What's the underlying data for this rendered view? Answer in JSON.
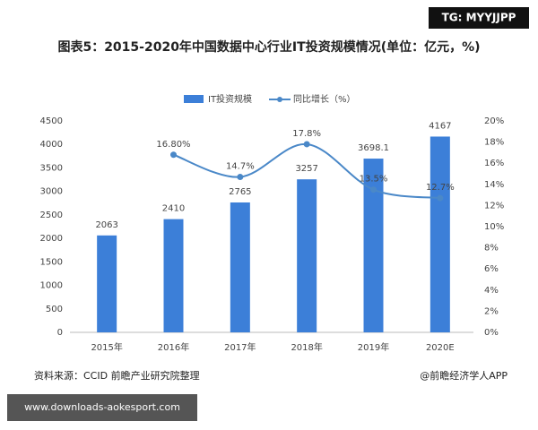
{
  "chart_data": {
    "type": "bar-line",
    "title": "图表5：2015-2020年中国数据中心行业IT投资规模情况(单位：亿元，%)",
    "categories": [
      "2015年",
      "2016年",
      "2017年",
      "2018年",
      "2019年",
      "2020E"
    ],
    "series": [
      {
        "name": "IT投资规模",
        "color": "#3c7fd8",
        "type": "bar",
        "values": [
          2063,
          2410,
          2765,
          3257,
          3698.1,
          4167
        ]
      },
      {
        "name": "同比增长（%）",
        "color": "#4a88c8",
        "type": "line",
        "axis": "y2",
        "values": [
          null,
          16.8,
          14.7,
          17.8,
          13.5,
          12.7
        ],
        "value_labels": [
          null,
          "16.80%",
          "14.7%",
          "17.8%",
          "13.5%",
          "12.7%"
        ]
      }
    ],
    "ylim": [
      0,
      4500
    ],
    "yticks": [
      0,
      500,
      1000,
      1500,
      2000,
      2500,
      3000,
      3500,
      4000,
      4500
    ],
    "y2lim": [
      0,
      20
    ],
    "y2ticks": [
      {
        "value": 0,
        "label": "0%"
      },
      {
        "value": 2,
        "label": "2%"
      },
      {
        "value": 4,
        "label": "4%"
      },
      {
        "value": 6,
        "label": "6%"
      },
      {
        "value": 8,
        "label": "8%"
      },
      {
        "value": 10,
        "label": "10%"
      },
      {
        "value": 12,
        "label": "12%"
      },
      {
        "value": 14,
        "label": "14%"
      },
      {
        "value": 16,
        "label": "16%"
      },
      {
        "value": 18,
        "label": "18%"
      },
      {
        "value": 20,
        "label": "20%"
      }
    ],
    "source": "资料来源：CCID 前瞻产业研究院整理",
    "credit": "@前瞻经济学人APP"
  },
  "overlays": {
    "tag": "TG: MYYJJPP",
    "site": "www.downloads-aokesport.com"
  }
}
